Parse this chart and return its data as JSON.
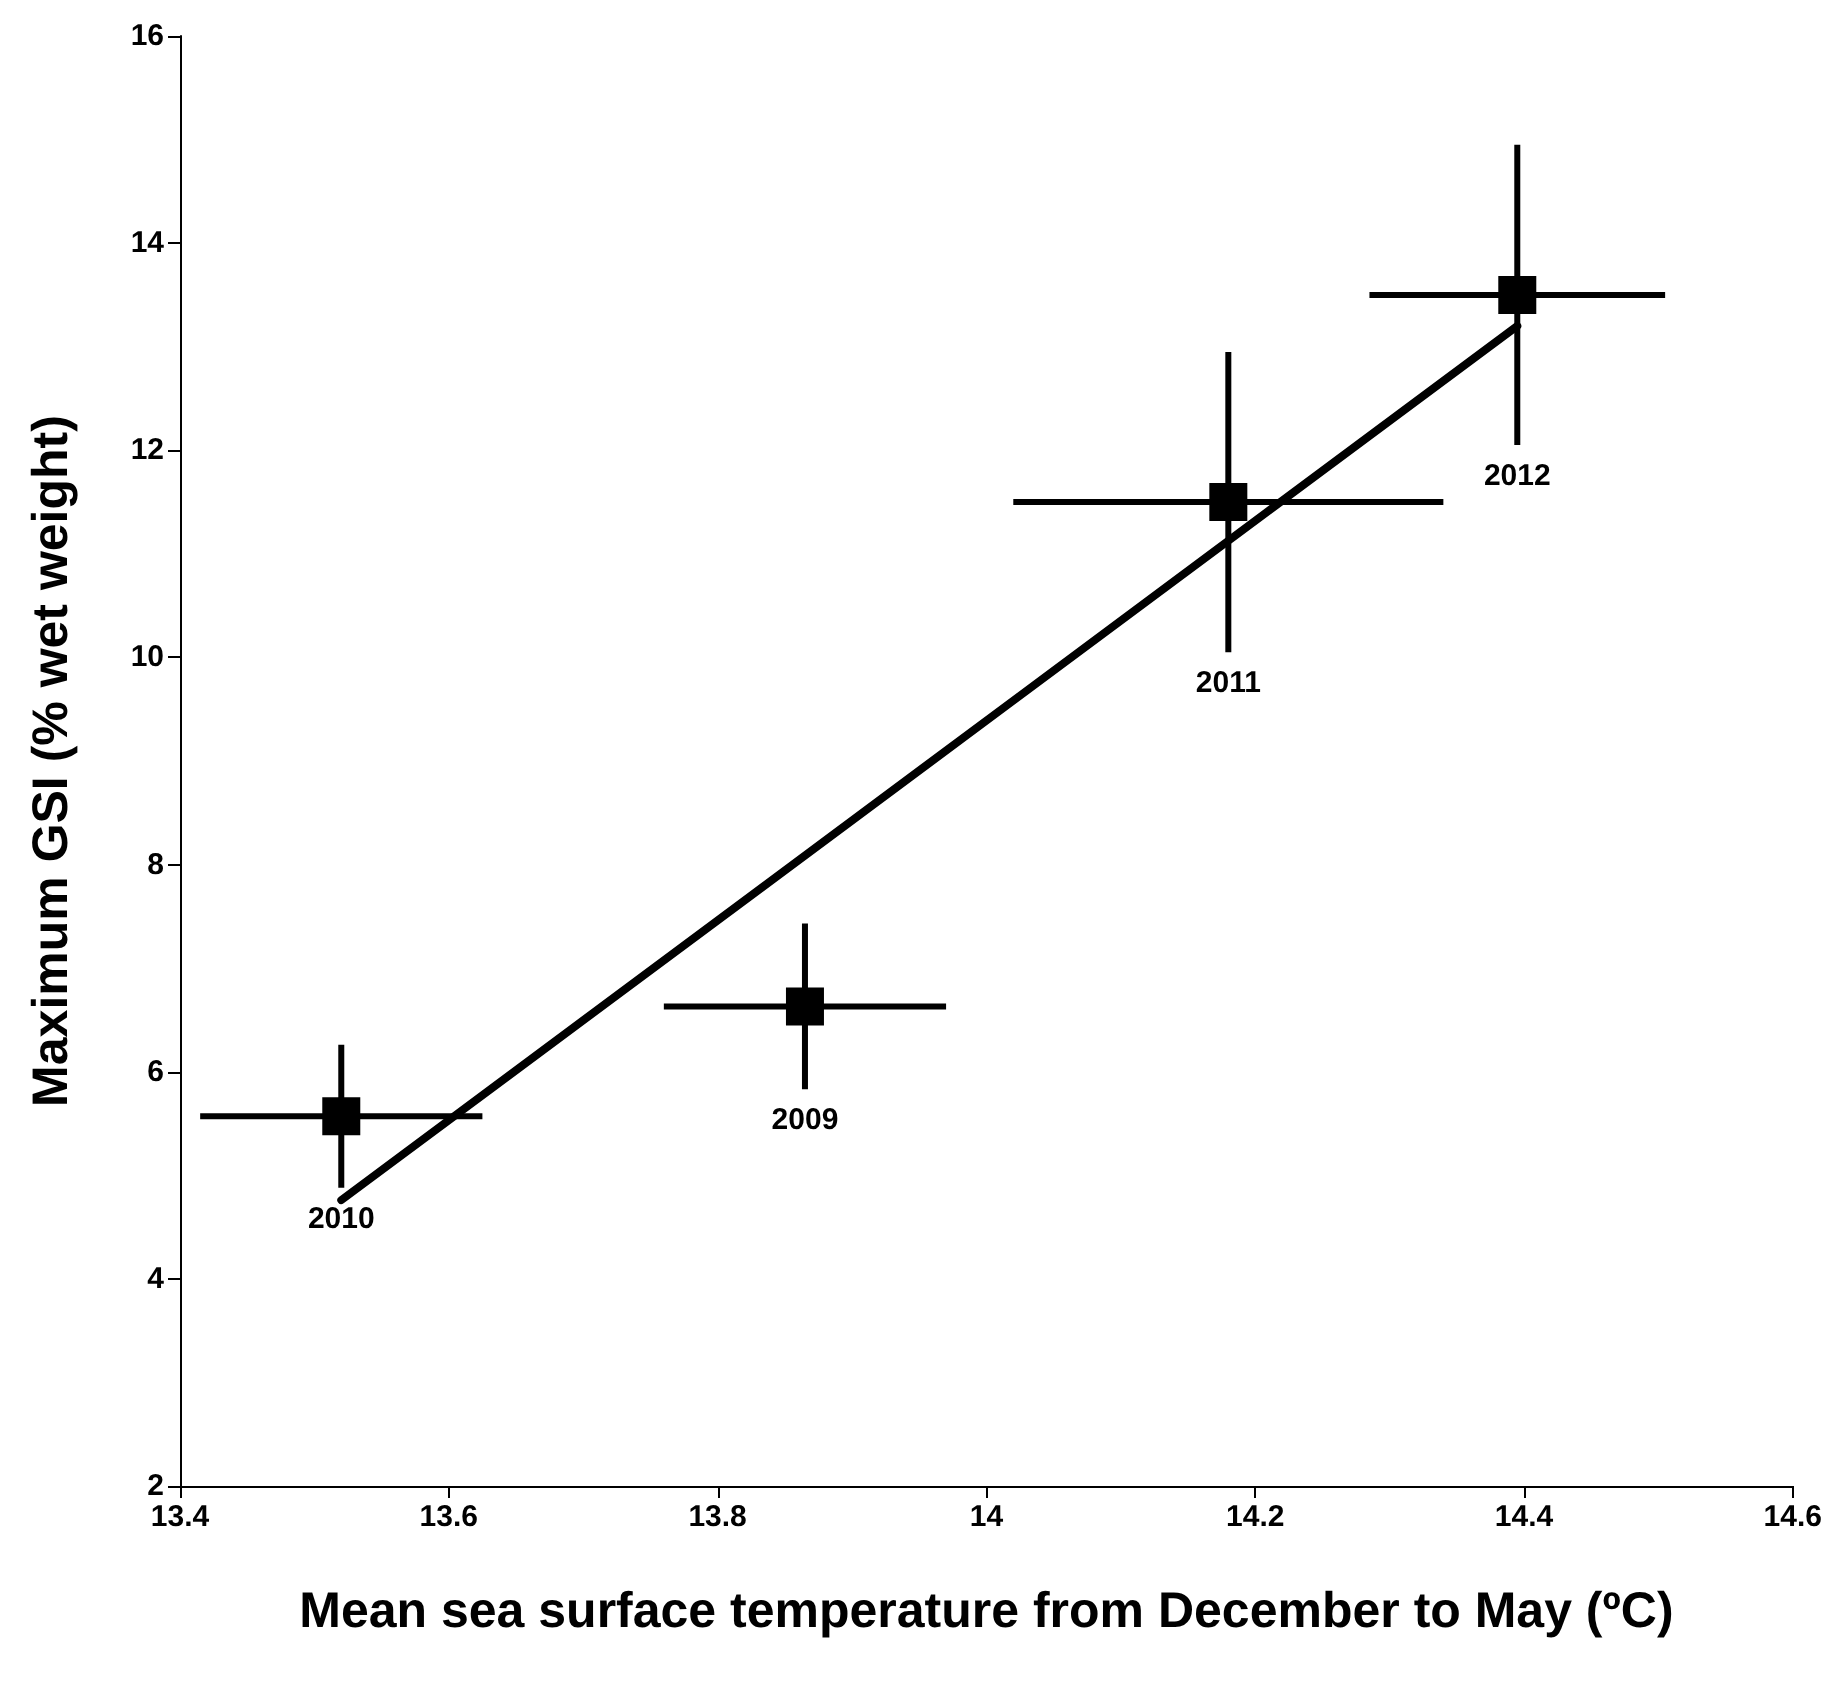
{
  "chart_data": {
    "type": "scatter",
    "xlabel": "Mean sea surface temperature from December to May (ºC)",
    "ylabel": "Maximum GSI (% wet weight)",
    "xlim": [
      13.4,
      14.6
    ],
    "xticks": [
      13.4,
      13.6,
      13.8,
      14,
      14.2,
      14.4,
      14.6
    ],
    "ylim": [
      2,
      16
    ],
    "yticks": [
      2,
      4,
      6,
      8,
      10,
      12,
      14,
      16
    ],
    "marker": "square",
    "series": [
      {
        "color": "#000000",
        "x": [
          13.52,
          13.865,
          14.18,
          14.395
        ],
        "values": [
          5.57,
          6.63,
          11.5,
          13.5
        ],
        "errors": [
          0.69,
          0.8,
          1.45,
          1.45
        ],
        "xerrors": [
          0.105,
          0.105,
          0.16,
          0.11
        ]
      },
      {
        "type": "line",
        "color": "#000000",
        "marker": "none",
        "line_style": "solid",
        "x": [
          13.52,
          14.395
        ],
        "values": [
          4.76,
          13.2
        ]
      }
    ],
    "annotations": [
      {
        "text": "2010",
        "x": 13.52,
        "y": 4.88
      },
      {
        "text": "2009",
        "x": 13.865,
        "y": 5.83
      },
      {
        "text": "2011",
        "x": 14.18,
        "y": 10.05
      },
      {
        "text": "2012",
        "x": 14.395,
        "y": 12.05
      }
    ]
  }
}
